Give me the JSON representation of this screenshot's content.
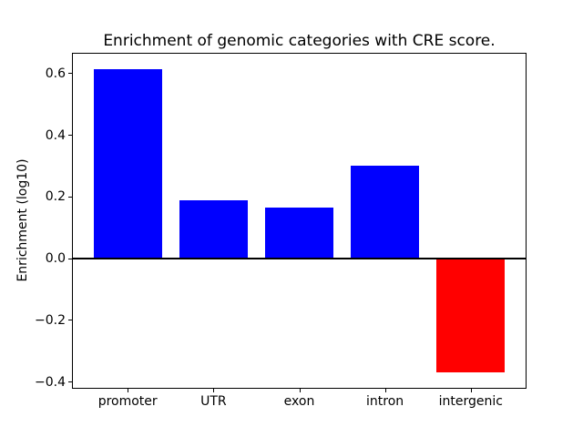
{
  "figure": {
    "background": "#ffffff"
  },
  "chart_data": {
    "type": "bar",
    "title": "Enrichment of genomic categories with CRE score.",
    "xlabel": "",
    "ylabel": "Enrichment (log10)",
    "categories": [
      "promoter",
      "UTR",
      "exon",
      "intron",
      "intergenic"
    ],
    "values": [
      0.615,
      0.19,
      0.165,
      0.3,
      -0.37
    ],
    "bar_colors": [
      "#0000ff",
      "#0000ff",
      "#0000ff",
      "#0000ff",
      "#ff0000"
    ],
    "positive_color": "#0000ff",
    "negative_color": "#ff0000",
    "bar_width": 0.8,
    "xlim": [
      -0.64,
      4.64
    ],
    "ylim": [
      -0.419,
      0.664
    ],
    "yticks": [
      0.6,
      0.4,
      0.2,
      0.0,
      -0.2,
      -0.4
    ],
    "ytick_labels": [
      "0.6",
      "0.4",
      "0.2",
      "0.0",
      "−0.2",
      "−0.4"
    ],
    "zero_line": true,
    "grid": false,
    "legend": null
  }
}
